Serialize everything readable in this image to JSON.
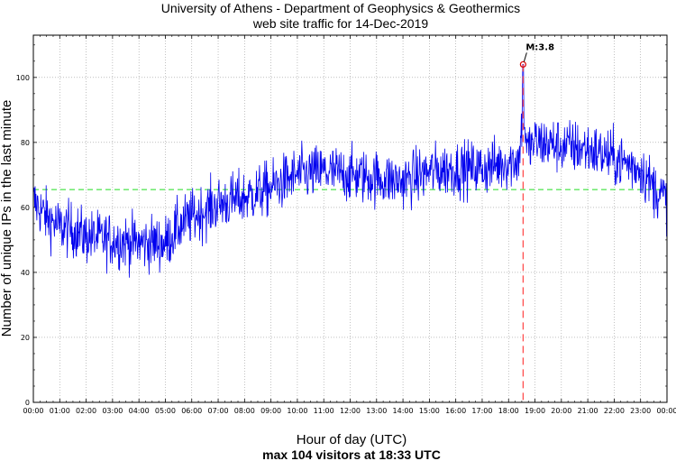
{
  "chart_data": {
    "type": "line",
    "title_line1": "University of Athens - Department of Geophysics & Geothermics",
    "title_line2": "web site traffic for 14-Dec-2019",
    "xlabel": "Hour of day (UTC)",
    "subtitle": "max 104 visitors at 18:33 UTC",
    "ylabel": "Number of unique IPs in the last minute",
    "xlim": [
      0,
      24
    ],
    "ylim": [
      0,
      113
    ],
    "x_tick_labels": [
      "00:00",
      "01:00",
      "02:00",
      "03:00",
      "04:00",
      "05:00",
      "06:00",
      "07:00",
      "08:00",
      "09:00",
      "10:00",
      "11:00",
      "12:00",
      "13:00",
      "14:00",
      "15:00",
      "16:00",
      "17:00",
      "18:00",
      "19:00",
      "20:00",
      "21:00",
      "22:00",
      "23:00",
      "00:00"
    ],
    "y_ticks": [
      0,
      20,
      40,
      60,
      80,
      100
    ],
    "grid": true,
    "average_line": {
      "value": 65.5,
      "color": "#22dd22"
    },
    "event_line": {
      "x_hour": 18.55,
      "color": "#ff4444",
      "label": "M:3.8"
    },
    "max_point": {
      "x_hour": 18.55,
      "value": 104,
      "color": "#dd0000"
    },
    "series": [
      {
        "name": "unique IPs",
        "color": "#0000ee",
        "hourly_trend": [
          {
            "hour": 0,
            "value": 62
          },
          {
            "hour": 0.5,
            "value": 57
          },
          {
            "hour": 1,
            "value": 54
          },
          {
            "hour": 1.5,
            "value": 53
          },
          {
            "hour": 2,
            "value": 51
          },
          {
            "hour": 3,
            "value": 50
          },
          {
            "hour": 4,
            "value": 49
          },
          {
            "hour": 5,
            "value": 49
          },
          {
            "hour": 5.5,
            "value": 54
          },
          {
            "hour": 6,
            "value": 57
          },
          {
            "hour": 7,
            "value": 61
          },
          {
            "hour": 8,
            "value": 63
          },
          {
            "hour": 9,
            "value": 66
          },
          {
            "hour": 10,
            "value": 70
          },
          {
            "hour": 11,
            "value": 71
          },
          {
            "hour": 12,
            "value": 70
          },
          {
            "hour": 13,
            "value": 69
          },
          {
            "hour": 14,
            "value": 68
          },
          {
            "hour": 15,
            "value": 71
          },
          {
            "hour": 16,
            "value": 72
          },
          {
            "hour": 17,
            "value": 72
          },
          {
            "hour": 18,
            "value": 74
          },
          {
            "hour": 18.4,
            "value": 75
          },
          {
            "hour": 19,
            "value": 80
          },
          {
            "hour": 20,
            "value": 79
          },
          {
            "hour": 21,
            "value": 78
          },
          {
            "hour": 22,
            "value": 75
          },
          {
            "hour": 23,
            "value": 72
          },
          {
            "hour": 23.5,
            "value": 66
          },
          {
            "hour": 24,
            "value": 62
          }
        ]
      }
    ]
  }
}
